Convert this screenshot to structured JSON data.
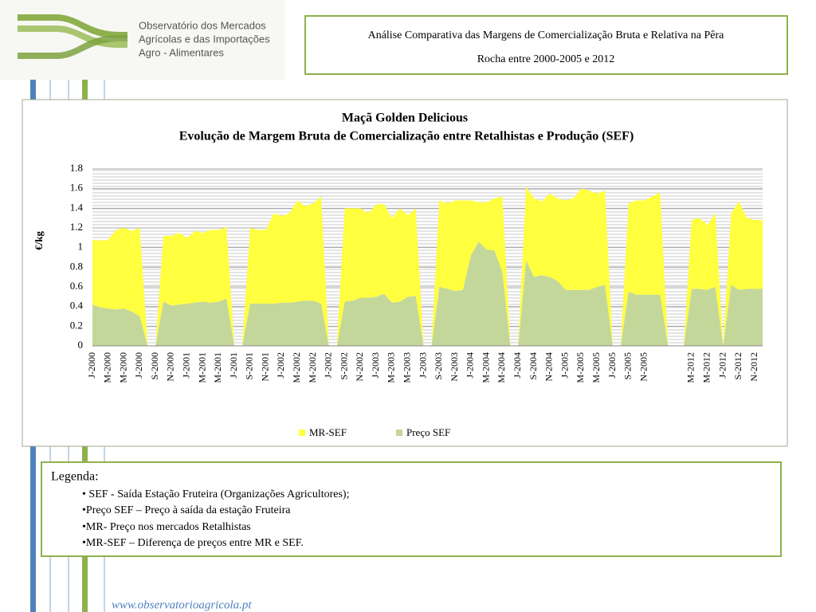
{
  "header": {
    "logo_lines": [
      "Observatório dos Mercados",
      "Agrícolas e das Importações",
      "Agro - Alimentares"
    ],
    "title_lines": [
      "Análise Comparativa das Margens de Comercialização Bruta e Relativa na Pêra",
      "Rocha  entre 2000-2005 e 2012"
    ]
  },
  "chart_data": {
    "type": "stacked_area",
    "title": "Maçã Golden Delicious",
    "subtitle": "Evolução de Margem Bruta de Comercialização entre Retalhistas e Produção (SEF)",
    "y_label": "€/kg",
    "categories": [
      "J-2000",
      null,
      "M-2000",
      null,
      "M-2000",
      null,
      "J-2000",
      null,
      "S-2000",
      null,
      "N-2000",
      null,
      "J-2001",
      null,
      "M-2001",
      null,
      "M-2001",
      null,
      "J-2001",
      null,
      "S-2001",
      null,
      "N-2001",
      null,
      "J-2002",
      null,
      "M-2002",
      null,
      "M-2002",
      null,
      "J-2002",
      null,
      "S-2002",
      null,
      "N-2002",
      null,
      "J-2003",
      null,
      "M-2003",
      null,
      "M-2003",
      null,
      "J-2003",
      null,
      "S-2003",
      null,
      "N-2003",
      null,
      "J-2004",
      null,
      "M-2004",
      null,
      "M-2004",
      null,
      "J-2004",
      null,
      "S-2004",
      null,
      "N-2004",
      null,
      "J-2005",
      null,
      "M-2005",
      null,
      "M-2005",
      null,
      "J-2005",
      null,
      "S-2005",
      null,
      "N-2005",
      null,
      null,
      null,
      null,
      null,
      "M-2012",
      null,
      "M-2012",
      null,
      "J-2012",
      null,
      "S-2012",
      null,
      "N-2012",
      null
    ],
    "series": [
      {
        "name": "MR-SEF",
        "color": "#ffff40",
        "values": [
          0.66,
          0.68,
          0.7,
          0.81,
          0.82,
          0.82,
          0.9,
          0,
          0,
          0.67,
          0.71,
          0.73,
          0.67,
          0.73,
          0.7,
          0.74,
          0.73,
          0.73,
          0,
          0,
          0.77,
          0.75,
          0.75,
          0.92,
          0.88,
          0.91,
          1.03,
          0.96,
          0.99,
          1.09,
          0,
          0,
          0.95,
          0.94,
          0.91,
          0.86,
          0.94,
          0.91,
          0.86,
          0.95,
          0.83,
          0.89,
          0,
          0,
          0.88,
          0.87,
          0.92,
          0.91,
          0.56,
          0.4,
          0.48,
          0.53,
          0.77,
          0,
          0,
          0.75,
          0.8,
          0.75,
          0.85,
          0.84,
          0.91,
          0.93,
          1.03,
          1.01,
          0.95,
          0.96,
          0,
          0,
          0.9,
          0.96,
          0.96,
          1.0,
          1.04,
          0,
          0,
          0,
          0.7,
          0.72,
          0.66,
          0.75,
          0,
          0.73,
          0.9,
          0.72,
          0.7,
          0.7
        ]
      },
      {
        "name": "Preço SEF",
        "color": "#c4d79b",
        "values": [
          0.42,
          0.39,
          0.38,
          0.37,
          0.38,
          0.35,
          0.3,
          0,
          0,
          0.45,
          0.41,
          0.42,
          0.43,
          0.44,
          0.45,
          0.44,
          0.45,
          0.48,
          0,
          0,
          0.43,
          0.43,
          0.43,
          0.43,
          0.44,
          0.44,
          0.45,
          0.46,
          0.46,
          0.43,
          0,
          0,
          0.45,
          0.46,
          0.49,
          0.49,
          0.5,
          0.53,
          0.44,
          0.45,
          0.5,
          0.51,
          0,
          0,
          0.6,
          0.58,
          0.56,
          0.57,
          0.92,
          1.06,
          0.98,
          0.97,
          0.75,
          0,
          0,
          0.87,
          0.7,
          0.72,
          0.7,
          0.66,
          0.57,
          0.57,
          0.57,
          0.57,
          0.6,
          0.62,
          0,
          0,
          0.55,
          0.52,
          0.52,
          0.52,
          0.52,
          0,
          0,
          0,
          0.58,
          0.58,
          0.57,
          0.6,
          0,
          0.62,
          0.57,
          0.58,
          0.58,
          0.58
        ]
      }
    ],
    "ylim": [
      0,
      1.8
    ],
    "yticks": [
      0,
      0.2,
      0.4,
      0.6,
      0.8,
      1,
      1.2,
      1.4,
      1.6,
      1.8
    ],
    "grid": true,
    "legend": "bottom"
  },
  "notes": {
    "title": "Legenda:",
    "items": [
      "• SEF - Saída Estação Fruteira (Organizações Agricultores);",
      "•Preço SEF – Preço à saída da estação Fruteira",
      "•MR- Preço nos mercados Retalhistas",
      "•MR-SEF – Diferença de preços entre MR e SEF."
    ]
  },
  "footer": "www.observatorioagricola.pt"
}
